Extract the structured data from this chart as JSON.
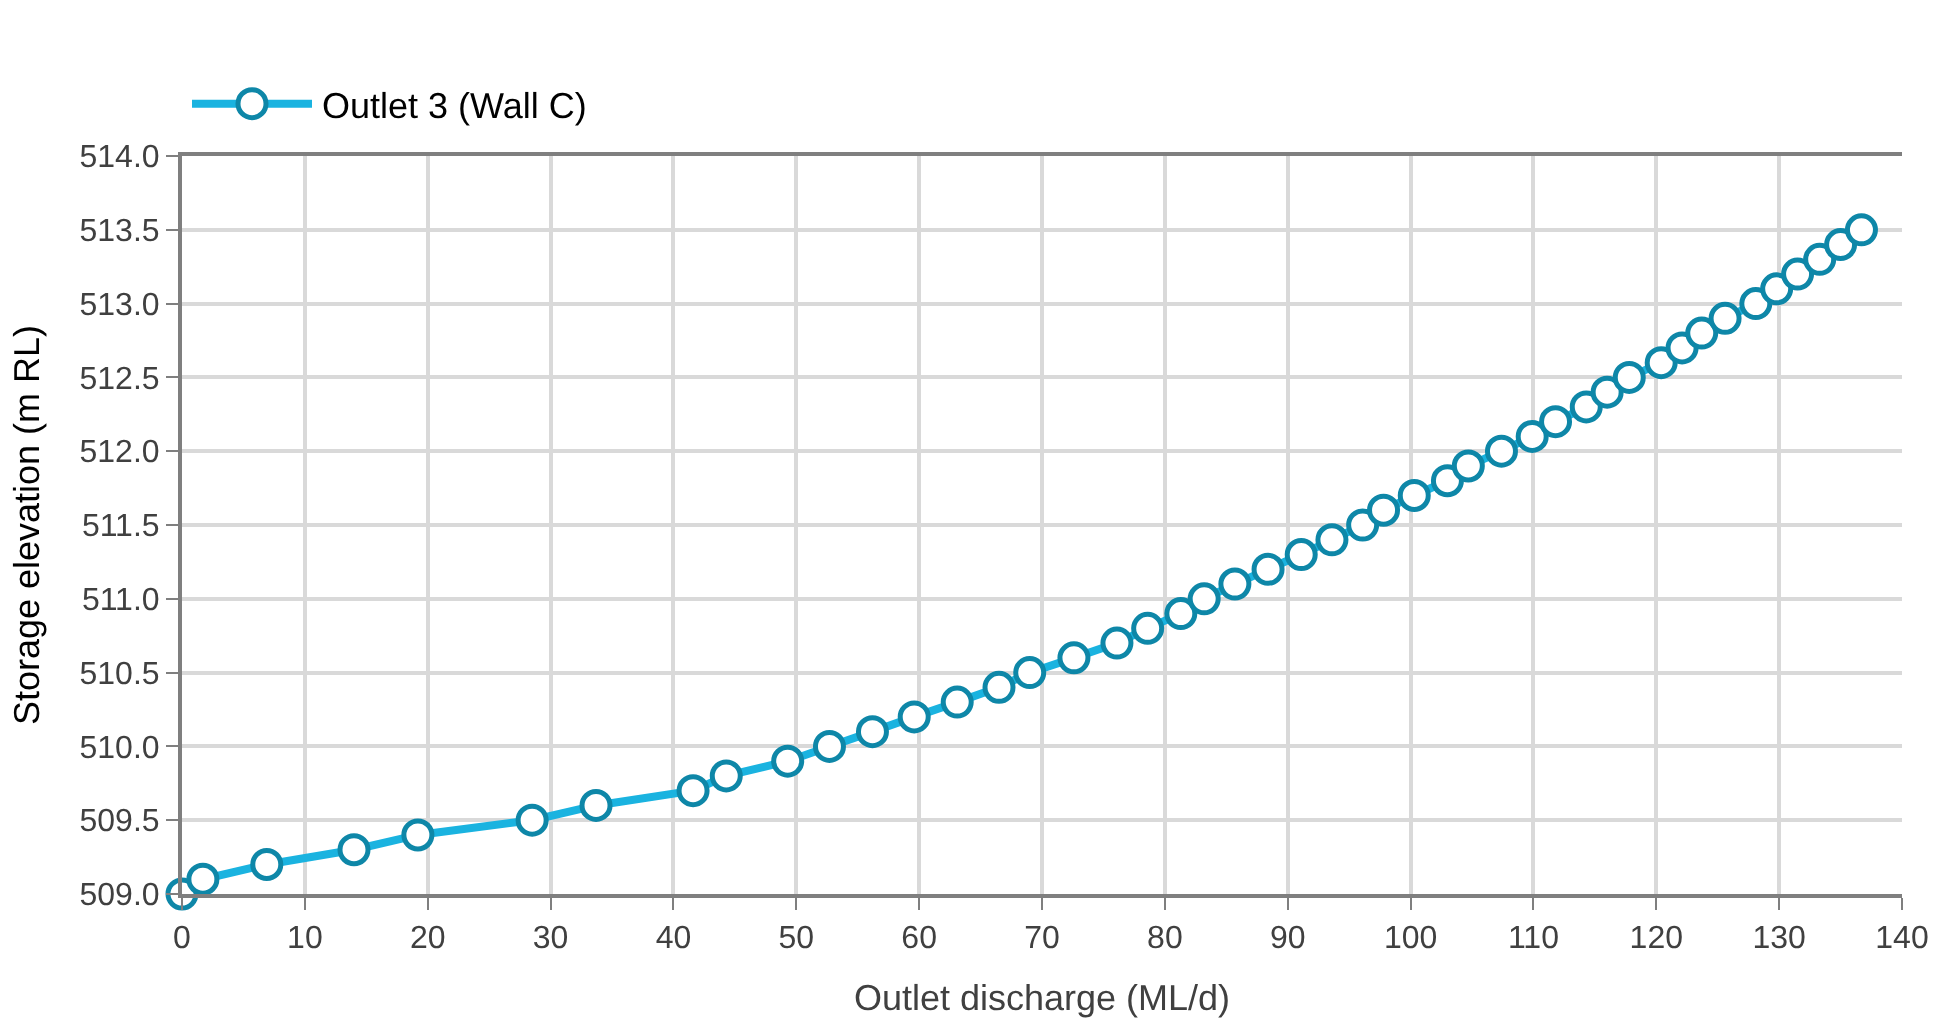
{
  "chart_data": {
    "type": "line",
    "xlabel": "Outlet discharge (ML/d)",
    "ylabel": "Storage elevation (m RL)",
    "x": [
      0,
      1.7,
      6.9,
      14.0,
      19.2,
      28.5,
      33.7,
      41.6,
      44.3,
      49.3,
      52.7,
      56.2,
      59.6,
      63.1,
      66.5,
      69.0,
      72.6,
      76.1,
      78.6,
      81.3,
      83.2,
      85.7,
      88.4,
      91.1,
      93.6,
      96.1,
      97.8,
      100.3,
      103.0,
      104.7,
      107.4,
      109.9,
      111.8,
      114.3,
      116.0,
      117.8,
      120.4,
      122.1,
      123.7,
      125.6,
      128.1,
      129.8,
      131.5,
      133.3,
      135.0,
      136.7
    ],
    "series": [
      {
        "name": "Outlet 3 (Wall C)",
        "color": "#1ab3e0",
        "values": [
          509.0,
          509.1,
          509.2,
          509.3,
          509.4,
          509.5,
          509.6,
          509.7,
          509.8,
          509.9,
          510.0,
          510.1,
          510.2,
          510.3,
          510.4,
          510.5,
          510.6,
          510.7,
          510.8,
          510.9,
          511.0,
          511.1,
          511.2,
          511.3,
          511.4,
          511.5,
          511.6,
          511.7,
          511.8,
          511.9,
          512.0,
          512.1,
          512.2,
          512.3,
          512.4,
          512.5,
          512.6,
          512.7,
          512.8,
          512.9,
          513.0,
          513.1,
          513.2,
          513.3,
          513.4,
          513.5
        ]
      }
    ],
    "xlim": [
      0,
      140
    ],
    "xticks": [
      0,
      10,
      20,
      30,
      40,
      50,
      60,
      70,
      80,
      90,
      100,
      110,
      120,
      130,
      140
    ],
    "ylim": [
      509,
      514
    ],
    "yticks": [
      {
        "value": 509,
        "label": "509.0"
      },
      {
        "value": 509.5,
        "label": "509.5"
      },
      {
        "value": 510,
        "label": "510.0"
      },
      {
        "value": 510.5,
        "label": "510.5"
      },
      {
        "value": 511,
        "label": "511.0"
      },
      {
        "value": 511.5,
        "label": "511.5"
      },
      {
        "value": 512,
        "label": "512.0"
      },
      {
        "value": 512.5,
        "label": "512.5"
      },
      {
        "value": 513,
        "label": "513.0"
      },
      {
        "value": 513.5,
        "label": "513.5"
      },
      {
        "value": 514,
        "label": "514.0"
      }
    ],
    "grid": true,
    "legend": "top left",
    "marker": "circle",
    "line_style": "solid"
  }
}
